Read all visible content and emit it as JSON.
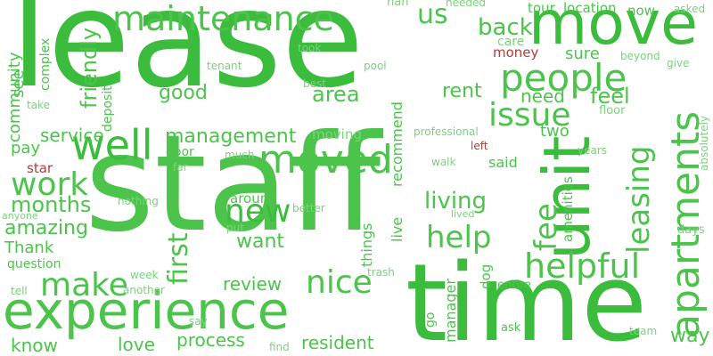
{
  "colors": {
    "green_dark": "#3cbc3c",
    "green": "#4cc44c",
    "green_light": "#7ad27a",
    "red": "#b53a3a",
    "background": "#ffffff"
  },
  "words": [
    {
      "text": "lease",
      "color": "green_dark"
    },
    {
      "text": "staff",
      "color": "green"
    },
    {
      "text": "time",
      "color": "green_dark"
    },
    {
      "text": "experience",
      "color": "green"
    },
    {
      "text": "move",
      "color": "green_dark"
    },
    {
      "text": "unit",
      "color": "green_dark"
    },
    {
      "text": "apartments",
      "color": "green"
    },
    {
      "text": "maintenance",
      "color": "green"
    },
    {
      "text": "people",
      "color": "green"
    },
    {
      "text": "well",
      "color": "green_dark"
    },
    {
      "text": "moved",
      "color": "green"
    },
    {
      "text": "helpful",
      "color": "green"
    },
    {
      "text": "work",
      "color": "green"
    },
    {
      "text": "new",
      "color": "green_dark"
    },
    {
      "text": "issue",
      "color": "green"
    },
    {
      "text": "make",
      "color": "green"
    },
    {
      "text": "nice",
      "color": "green"
    },
    {
      "text": "leasing",
      "color": "green"
    },
    {
      "text": "help",
      "color": "green"
    },
    {
      "text": "fee",
      "color": "green"
    },
    {
      "text": "months",
      "color": "green"
    },
    {
      "text": "first",
      "color": "green"
    },
    {
      "text": "us",
      "color": "green"
    },
    {
      "text": "living",
      "color": "green"
    },
    {
      "text": "back",
      "color": "green"
    },
    {
      "text": "friendly",
      "color": "green"
    },
    {
      "text": "community",
      "color": "green"
    },
    {
      "text": "amazing",
      "color": "green"
    },
    {
      "text": "area",
      "color": "green"
    },
    {
      "text": "rent",
      "color": "green"
    },
    {
      "text": "feel",
      "color": "green"
    },
    {
      "text": "management",
      "color": "green"
    },
    {
      "text": "good",
      "color": "green"
    },
    {
      "text": "service",
      "color": "green"
    },
    {
      "text": "want",
      "color": "green"
    },
    {
      "text": "review",
      "color": "green"
    },
    {
      "text": "sure",
      "color": "green"
    },
    {
      "text": "need",
      "color": "green"
    },
    {
      "text": "two",
      "color": "green"
    },
    {
      "text": "see",
      "color": "green"
    },
    {
      "text": "pay",
      "color": "green"
    },
    {
      "text": "Thank",
      "color": "green"
    },
    {
      "text": "process",
      "color": "green"
    },
    {
      "text": "love",
      "color": "green"
    },
    {
      "text": "know",
      "color": "green"
    },
    {
      "text": "resident",
      "color": "green"
    },
    {
      "text": "way",
      "color": "green"
    },
    {
      "text": "recommend",
      "color": "green"
    },
    {
      "text": "amenities",
      "color": "green"
    },
    {
      "text": "live",
      "color": "green"
    },
    {
      "text": "things",
      "color": "green"
    },
    {
      "text": "manager",
      "color": "green"
    },
    {
      "text": "said",
      "color": "green"
    },
    {
      "text": "location",
      "color": "green"
    },
    {
      "text": "tour",
      "color": "green"
    },
    {
      "text": "now",
      "color": "green"
    },
    {
      "text": "care",
      "color": "green_light"
    },
    {
      "text": "deposit",
      "color": "green"
    },
    {
      "text": "complex",
      "color": "green"
    },
    {
      "text": "money",
      "color": "red"
    },
    {
      "text": "star",
      "color": "red"
    },
    {
      "text": "left",
      "color": "red"
    },
    {
      "text": "door",
      "color": "green"
    },
    {
      "text": "moving",
      "color": "green_light"
    },
    {
      "text": "around",
      "color": "green"
    },
    {
      "text": "question",
      "color": "green"
    },
    {
      "text": "dog",
      "color": "green"
    },
    {
      "text": "go",
      "color": "green"
    },
    {
      "text": "ask",
      "color": "green"
    },
    {
      "text": "entire",
      "color": "green"
    },
    {
      "text": "floor",
      "color": "green_light"
    },
    {
      "text": "years",
      "color": "green_light"
    },
    {
      "text": "absolutely",
      "color": "green_light"
    },
    {
      "text": "days",
      "color": "green_light"
    },
    {
      "text": "team",
      "color": "green_light"
    },
    {
      "text": "give",
      "color": "green_light"
    },
    {
      "text": "beyond",
      "color": "green_light"
    },
    {
      "text": "asked",
      "color": "green_light"
    },
    {
      "text": "nan",
      "color": "green_light"
    },
    {
      "text": "needed",
      "color": "green_light"
    },
    {
      "text": "took",
      "color": "green_light"
    },
    {
      "text": "tenant",
      "color": "green_light"
    },
    {
      "text": "pool",
      "color": "green_light"
    },
    {
      "text": "best",
      "color": "green_light"
    },
    {
      "text": "take",
      "color": "green_light"
    },
    {
      "text": "professional",
      "color": "green_light"
    },
    {
      "text": "walk",
      "color": "green_light"
    },
    {
      "text": "lived",
      "color": "green_light"
    },
    {
      "text": "much",
      "color": "green_light"
    },
    {
      "text": "far",
      "color": "green_light"
    },
    {
      "text": "nothing",
      "color": "green_light"
    },
    {
      "text": "better",
      "color": "green_light"
    },
    {
      "text": "put",
      "color": "green_light"
    },
    {
      "text": "anyone",
      "color": "green_light"
    },
    {
      "text": "week",
      "color": "green_light"
    },
    {
      "text": "another",
      "color": "green_light"
    },
    {
      "text": "tell",
      "color": "green_light"
    },
    {
      "text": "trash",
      "color": "green_light"
    },
    {
      "text": "say",
      "color": "green_light"
    },
    {
      "text": "find",
      "color": "green_light"
    }
  ]
}
